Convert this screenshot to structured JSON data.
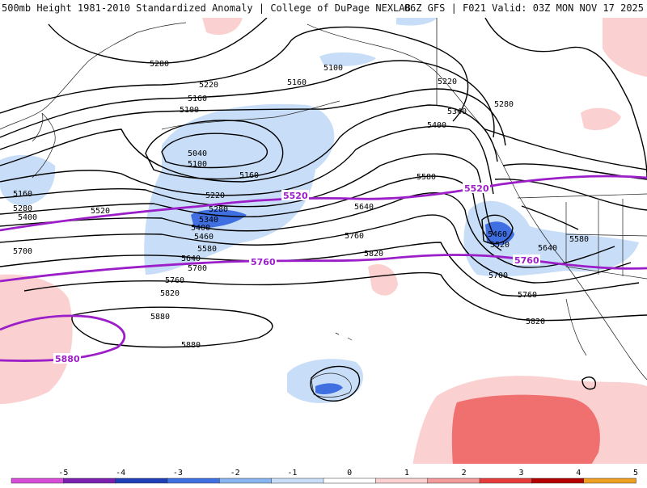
{
  "header": {
    "title_left": "500mb Height 1981-2010 Standardized Anomaly | College of DuPage NEXLAB",
    "title_right": "06Z GFS | F021 Valid: 03Z MON NOV 17 2025"
  },
  "contour_labels": [
    "5280",
    "5220",
    "5160",
    "5100",
    "5040",
    "5100",
    "5160",
    "5220",
    "5280",
    "5340",
    "5400",
    "5460",
    "5520",
    "5580",
    "5640",
    "5700",
    "5760",
    "5820",
    "5880",
    "5880",
    "5160",
    "5280",
    "5400",
    "5700",
    "5100",
    "5160",
    "5220",
    "5280",
    "5340",
    "5400",
    "5580",
    "5640",
    "5460",
    "5520",
    "5580",
    "5640",
    "5700",
    "5760",
    "5820"
  ],
  "highlight_labels": {
    "c5520_a": "5520",
    "c5520_b": "5520",
    "c5760_a": "5760",
    "c5760_b": "5760",
    "c5880": "5880"
  },
  "colorbar": {
    "ticks": [
      "-5",
      "-4",
      "-3",
      "-2",
      "-1",
      "0",
      "1",
      "2",
      "3",
      "4",
      "5"
    ],
    "colors": [
      "#d94cd9",
      "#7a1fb0",
      "#1f3fb8",
      "#3f6fe0",
      "#88b4f0",
      "#c8def8",
      "#ffffff",
      "#fbd0d0",
      "#f49a9a",
      "#e83c3c",
      "#b40000",
      "#f0a020"
    ]
  },
  "colors": {
    "anom_neg_light": "#c8def8",
    "anom_neg_mid": "#3f6fe0",
    "anom_pos_light": "#fbd0d0",
    "anom_pos_mid": "#f07070",
    "height_contour": "#000000",
    "highlight_contour": "#9b1ec8"
  }
}
